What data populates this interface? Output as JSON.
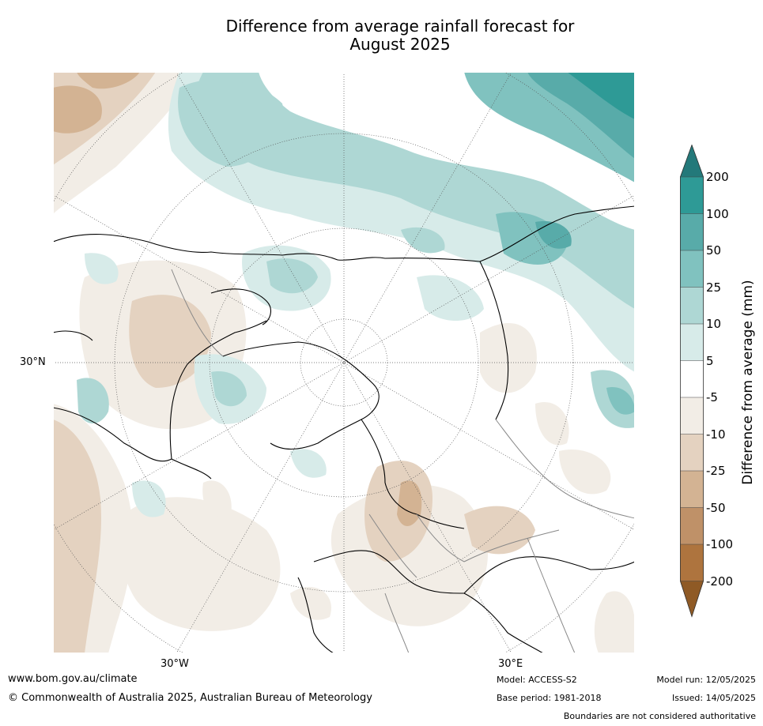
{
  "title_line1": "Difference from average rainfall forecast for",
  "title_line2": "August 2025",
  "map": {
    "projection": "north-polar-stereographic",
    "lat_label": "30°N",
    "lon_labels": {
      "west": "30°W",
      "east": "30°E"
    }
  },
  "colorbar": {
    "title": "Difference from average (mm)",
    "extend": "both",
    "tick_labels": [
      "200",
      "100",
      "50",
      "25",
      "10",
      "5",
      "-5",
      "-10",
      "-25",
      "-50",
      "-100",
      "-200"
    ],
    "bands": [
      {
        "range": "above 200",
        "color": "#23797a"
      },
      {
        "range": "100 to 200",
        "color": "#2e9a96"
      },
      {
        "range": "50 to 100",
        "color": "#58aba9"
      },
      {
        "range": "25 to 50",
        "color": "#80c2bf"
      },
      {
        "range": "10 to 25",
        "color": "#aed7d4"
      },
      {
        "range": "5 to 10",
        "color": "#d7ebe9"
      },
      {
        "range": "-5 to 5",
        "color": "#ffffff"
      },
      {
        "range": "-10 to -5",
        "color": "#f2ede6"
      },
      {
        "range": "-25 to -10",
        "color": "#e4d2c0"
      },
      {
        "range": "-50 to -25",
        "color": "#d3b393"
      },
      {
        "range": "-100 to -50",
        "color": "#bf9168"
      },
      {
        "range": "-200 to -100",
        "color": "#ae743e"
      },
      {
        "range": "below -200",
        "color": "#8f5a25"
      }
    ]
  },
  "footer": {
    "website": "www.bom.gov.au/climate",
    "copyright": "© Commonwealth of Australia 2025, Australian Bureau of Meteorology",
    "model": "Model: ACCESS-S2",
    "base_period": "Base period: 1981-2018",
    "model_run": "Model run: 12/05/2025",
    "issued": "Issued: 14/05/2025",
    "boundaries_note": "Boundaries are not considered authoritative"
  }
}
